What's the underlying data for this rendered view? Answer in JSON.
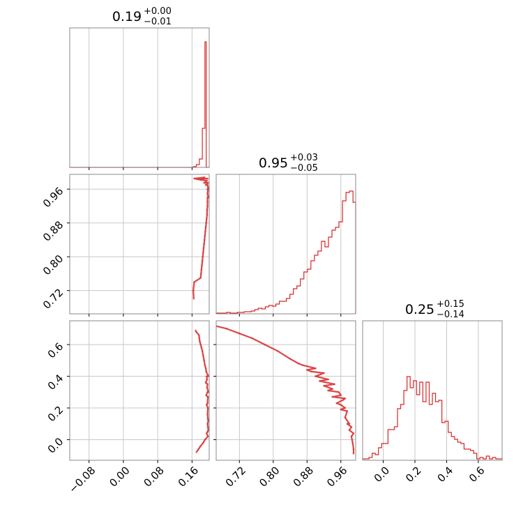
{
  "chart_data": {
    "type": "corner",
    "color": "#d62728",
    "grid": true,
    "parameters": [
      {
        "title": "0.19",
        "plus": "+0.00",
        "minus": "−0.01",
        "range": [
          -0.125,
          0.2
        ],
        "ticks": [
          -0.08,
          0.0,
          0.08,
          0.16
        ],
        "tick_labels": [
          "−0.08",
          "0.00",
          "0.08",
          "0.16"
        ],
        "hist_edges": [
          -0.125,
          0.163,
          0.17,
          0.177,
          0.184,
          0.19,
          0.193,
          0.196,
          0.2
        ],
        "hist_values": [
          0,
          0.006,
          0.02,
          0.06,
          0.28,
          0.9,
          0,
          0
        ]
      },
      {
        "title": "0.95",
        "plus": "+0.03",
        "minus": "−0.05",
        "range": [
          0.665,
          0.995
        ],
        "ticks": [
          0.72,
          0.8,
          0.88,
          0.96
        ],
        "tick_labels": [
          "0.72",
          "0.80",
          "0.88",
          "0.96"
        ],
        "hist_start": 0.665,
        "hist_step": 0.0083,
        "hist_values": [
          0.005,
          0.005,
          0.005,
          0.01,
          0.005,
          0.005,
          0.01,
          0.01,
          0.015,
          0.015,
          0.02,
          0.03,
          0.04,
          0.035,
          0.05,
          0.06,
          0.055,
          0.07,
          0.09,
          0.09,
          0.11,
          0.14,
          0.18,
          0.2,
          0.25,
          0.3,
          0.32,
          0.38,
          0.42,
          0.45,
          0.52,
          0.48,
          0.55,
          0.6,
          0.62,
          0.66,
          0.81,
          0.87,
          0.88,
          0.8
        ]
      },
      {
        "title": "0.25",
        "plus": "+0.15",
        "minus": "−0.14",
        "range": [
          -0.13,
          0.75
        ],
        "ticks": [
          0.0,
          0.2,
          0.4,
          0.6
        ],
        "tick_labels": [
          "0.0",
          "0.2",
          "0.4",
          "0.6"
        ],
        "hist_start": -0.13,
        "hist_step": 0.02,
        "hist_values": [
          0.01,
          0.01,
          0.02,
          0.05,
          0.04,
          0.09,
          0.12,
          0.12,
          0.22,
          0.22,
          0.24,
          0.37,
          0.4,
          0.5,
          0.6,
          0.52,
          0.57,
          0.47,
          0.56,
          0.42,
          0.56,
          0.4,
          0.48,
          0.42,
          0.43,
          0.27,
          0.28,
          0.2,
          0.17,
          0.15,
          0.13,
          0.12,
          0.08,
          0.08,
          0.07,
          0.05,
          0.01,
          0.02,
          0.01,
          0.03,
          0.01,
          0.02,
          0.01,
          0.01
        ]
      }
    ],
    "y_ticks": {
      "row1": {
        "ticks": [
          0.72,
          0.8,
          0.88,
          0.96
        ],
        "tick_labels": [
          "0.72",
          "0.80",
          "0.88",
          "0.96"
        ]
      },
      "row2": {
        "ticks": [
          0.0,
          0.2,
          0.4,
          0.6
        ],
        "tick_labels": [
          "0.0",
          "0.2",
          "0.4",
          "0.6"
        ]
      }
    },
    "samples_p1_p2": [
      [
        0.196,
        0.985
      ],
      [
        0.195,
        0.98
      ],
      [
        0.197,
        0.975
      ],
      [
        0.196,
        0.97
      ],
      [
        0.197,
        0.965
      ],
      [
        0.196,
        0.96
      ],
      [
        0.197,
        0.955
      ],
      [
        0.196,
        0.95
      ],
      [
        0.197,
        0.945
      ],
      [
        0.196,
        0.94
      ],
      [
        0.196,
        0.93
      ],
      [
        0.196,
        0.92
      ],
      [
        0.195,
        0.91
      ],
      [
        0.195,
        0.9
      ],
      [
        0.194,
        0.89
      ],
      [
        0.193,
        0.88
      ],
      [
        0.192,
        0.87
      ],
      [
        0.191,
        0.86
      ],
      [
        0.19,
        0.85
      ],
      [
        0.189,
        0.84
      ],
      [
        0.188,
        0.83
      ],
      [
        0.187,
        0.82
      ],
      [
        0.186,
        0.81
      ],
      [
        0.185,
        0.8
      ],
      [
        0.184,
        0.79
      ],
      [
        0.183,
        0.78
      ],
      [
        0.182,
        0.77
      ],
      [
        0.181,
        0.76
      ],
      [
        0.18,
        0.75
      ],
      [
        0.19,
        0.988
      ],
      [
        0.185,
        0.985
      ],
      [
        0.18,
        0.982
      ],
      [
        0.175,
        0.985
      ],
      [
        0.17,
        0.984
      ],
      [
        0.165,
        0.985
      ],
      [
        0.163,
        0.72
      ],
      [
        0.164,
        0.7
      ],
      [
        0.165,
        0.74
      ],
      [
        0.188,
        0.975
      ],
      [
        0.192,
        0.97
      ],
      [
        0.198,
        0.96
      ],
      [
        0.198,
        0.94
      ]
    ],
    "samples_p1_p3": [
      [
        0.197,
        0.02
      ],
      [
        0.196,
        0.05
      ],
      [
        0.197,
        0.08
      ],
      [
        0.196,
        0.1
      ],
      [
        0.197,
        0.13
      ],
      [
        0.196,
        0.16
      ],
      [
        0.197,
        0.2
      ],
      [
        0.196,
        0.23
      ],
      [
        0.197,
        0.27
      ],
      [
        0.196,
        0.3
      ],
      [
        0.195,
        0.33
      ],
      [
        0.196,
        0.35
      ],
      [
        0.195,
        0.38
      ],
      [
        0.194,
        0.4
      ],
      [
        0.193,
        0.43
      ],
      [
        0.192,
        0.45
      ],
      [
        0.19,
        0.47
      ],
      [
        0.188,
        0.5
      ],
      [
        0.186,
        0.53
      ],
      [
        0.184,
        0.56
      ],
      [
        0.182,
        0.58
      ],
      [
        0.18,
        0.6
      ],
      [
        0.178,
        0.62
      ],
      [
        0.177,
        0.64
      ],
      [
        0.176,
        0.66
      ],
      [
        0.17,
        0.68
      ],
      [
        0.168,
        0.69
      ],
      [
        0.19,
        0.0
      ],
      [
        0.186,
        -0.02
      ],
      [
        0.18,
        -0.04
      ],
      [
        0.175,
        -0.06
      ],
      [
        0.17,
        -0.08
      ],
      [
        0.198,
        0.06
      ],
      [
        0.198,
        0.12
      ],
      [
        0.194,
        0.04
      ],
      [
        0.194,
        0.22
      ],
      [
        0.198,
        0.3
      ],
      [
        0.193,
        0.28
      ],
      [
        0.198,
        0.4
      ],
      [
        0.192,
        0.36
      ]
    ],
    "samples_p2_p3": [
      [
        0.66,
        0.72
      ],
      [
        0.69,
        0.7
      ],
      [
        0.72,
        0.67
      ],
      [
        0.75,
        0.64
      ],
      [
        0.78,
        0.6
      ],
      [
        0.81,
        0.56
      ],
      [
        0.84,
        0.51
      ],
      [
        0.86,
        0.48
      ],
      [
        0.88,
        0.44
      ],
      [
        0.9,
        0.4
      ],
      [
        0.91,
        0.37
      ],
      [
        0.92,
        0.34
      ],
      [
        0.93,
        0.31
      ],
      [
        0.94,
        0.27
      ],
      [
        0.95,
        0.23
      ],
      [
        0.96,
        0.19
      ],
      [
        0.97,
        0.14
      ],
      [
        0.975,
        0.1
      ],
      [
        0.98,
        0.06
      ],
      [
        0.985,
        0.02
      ],
      [
        0.988,
        -0.02
      ],
      [
        0.99,
        -0.06
      ],
      [
        0.99,
        -0.09
      ],
      [
        0.985,
        0.08
      ],
      [
        0.975,
        0.18
      ],
      [
        0.965,
        0.25
      ],
      [
        0.955,
        0.3
      ],
      [
        0.945,
        0.35
      ],
      [
        0.93,
        0.38
      ],
      [
        0.92,
        0.42
      ],
      [
        0.9,
        0.45
      ],
      [
        0.89,
        0.43
      ],
      [
        0.87,
        0.47
      ],
      [
        0.96,
        0.22
      ],
      [
        0.97,
        0.2
      ],
      [
        0.98,
        0.1
      ],
      [
        0.99,
        0.04
      ],
      [
        0.97,
        0.26
      ],
      [
        0.96,
        0.28
      ],
      [
        0.94,
        0.32
      ]
    ]
  }
}
